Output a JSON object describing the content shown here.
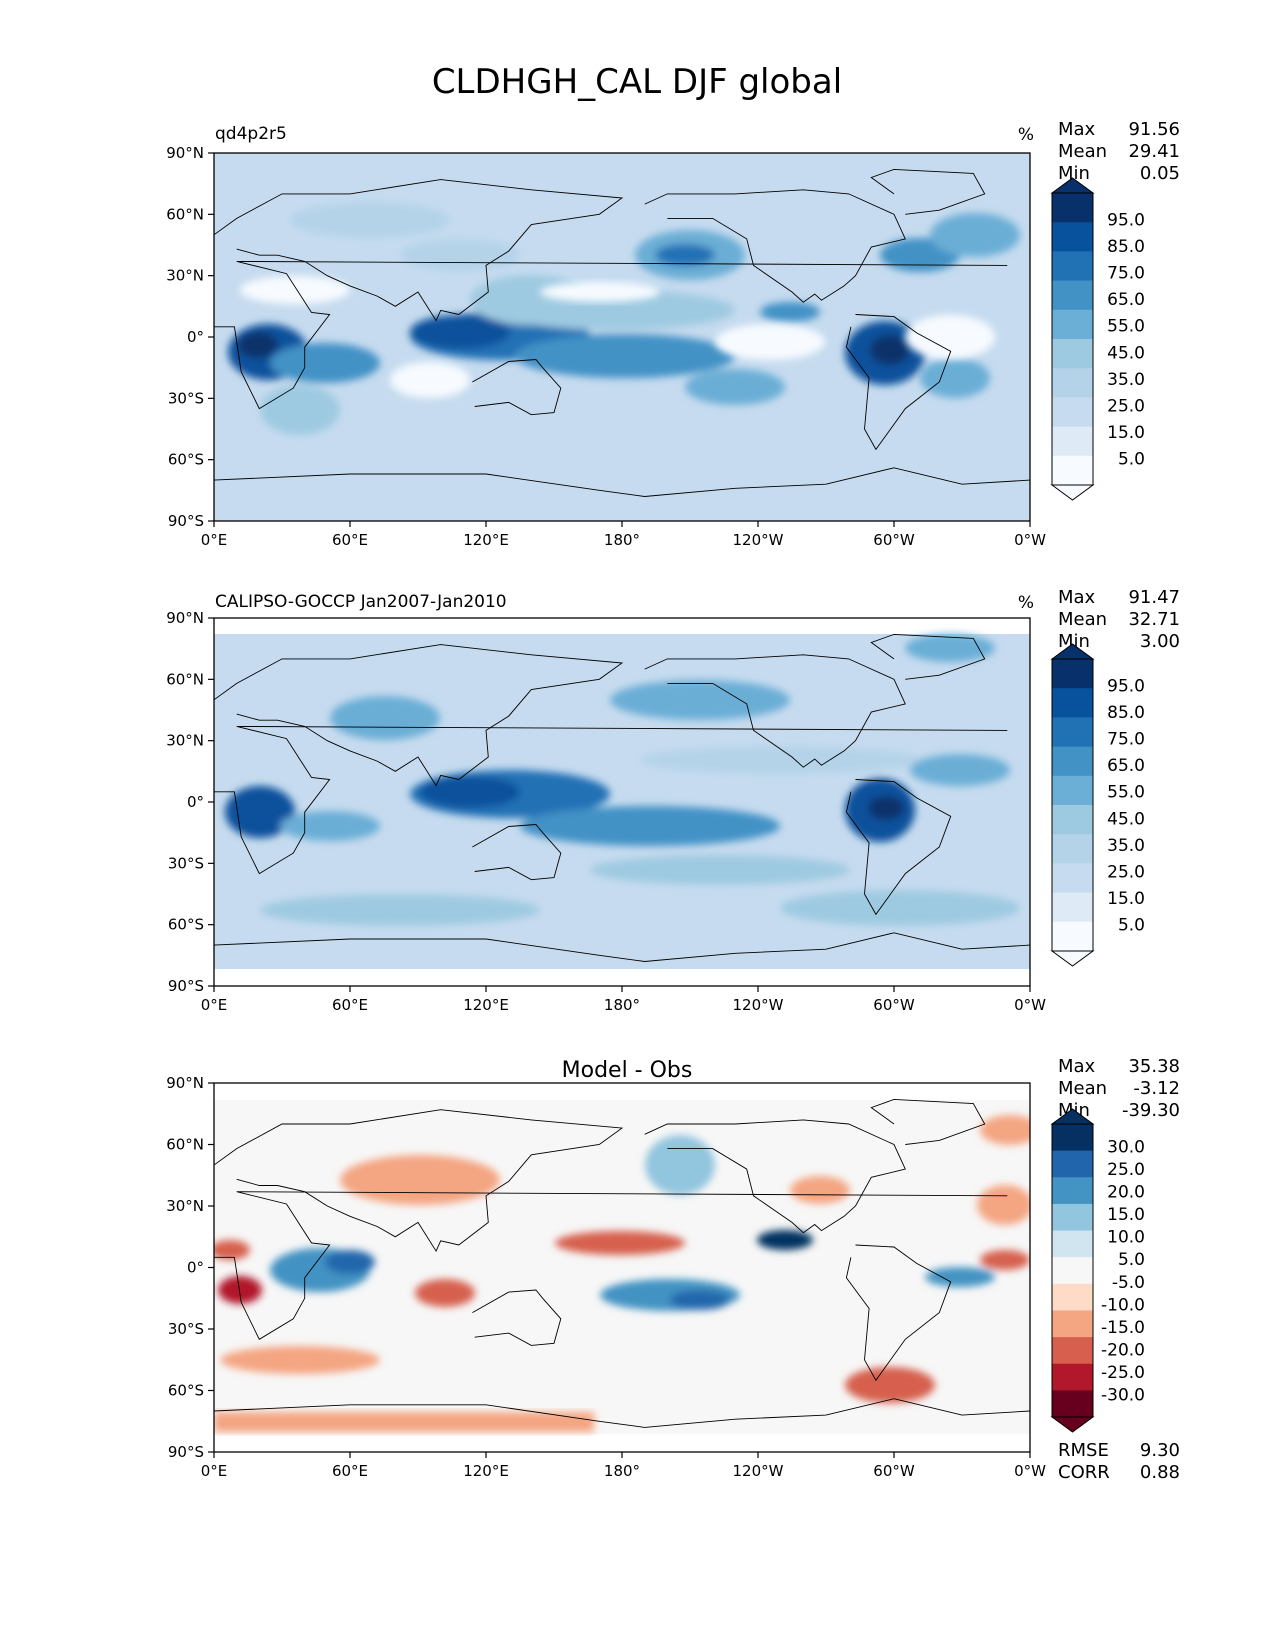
{
  "figure": {
    "title": "CLDHGH_CAL DJF global"
  },
  "colors": {
    "blues": [
      "#f7fbff",
      "#deebf7",
      "#c6dbef",
      "#b4d3e9",
      "#9ecae1",
      "#6baed6",
      "#4292c6",
      "#2171b5",
      "#08519c",
      "#08306b"
    ],
    "diverging": [
      "#67001f",
      "#b2182b",
      "#d6604d",
      "#f4a582",
      "#fddbc7",
      "#f7f7f7",
      "#d1e5f0",
      "#92c5de",
      "#4393c3",
      "#2166ac",
      "#053061"
    ],
    "land": "#000000",
    "frame": "#000000"
  },
  "chart_data": [
    {
      "type": "heatmap",
      "panel": "test",
      "title": "",
      "left_title": "qd4p2r5",
      "units": "%",
      "stats": [
        {
          "label": "Max",
          "value": "91.56"
        },
        {
          "label": "Mean",
          "value": "29.41"
        },
        {
          "label": "Min",
          "value": "0.05"
        }
      ],
      "colorbar_ticks": [
        "95.0",
        "85.0",
        "75.0",
        "65.0",
        "55.0",
        "45.0",
        "35.0",
        "25.0",
        "15.0",
        "5.0"
      ],
      "x_ticks": [
        "0°E",
        "60°E",
        "120°E",
        "180°",
        "120°W",
        "60°W",
        "0°W"
      ],
      "y_ticks": [
        "90°N",
        "60°N",
        "30°N",
        "0°",
        "30°S",
        "60°S",
        "90°S"
      ],
      "xlim": [
        0,
        360
      ],
      "ylim": [
        -90,
        90
      ],
      "field_range": [
        0,
        100
      ]
    },
    {
      "type": "heatmap",
      "panel": "reference",
      "title": "",
      "left_title": "CALIPSO-GOCCP Jan2007-Jan2010",
      "units": "%",
      "stats": [
        {
          "label": "Max",
          "value": "91.47"
        },
        {
          "label": "Mean",
          "value": "32.71"
        },
        {
          "label": "Min",
          "value": "3.00"
        }
      ],
      "colorbar_ticks": [
        "95.0",
        "85.0",
        "75.0",
        "65.0",
        "55.0",
        "45.0",
        "35.0",
        "25.0",
        "15.0",
        "5.0"
      ],
      "x_ticks": [
        "0°E",
        "60°E",
        "120°E",
        "180°",
        "120°W",
        "60°W",
        "0°W"
      ],
      "y_ticks": [
        "90°N",
        "60°N",
        "30°N",
        "0°",
        "30°S",
        "60°S",
        "90°S"
      ],
      "xlim": [
        0,
        360
      ],
      "ylim": [
        -90,
        90
      ],
      "field_range": [
        0,
        100
      ]
    },
    {
      "type": "heatmap",
      "panel": "difference",
      "title": "Model - Obs",
      "left_title": "",
      "units": "",
      "stats": [
        {
          "label": "Max",
          "value": "35.38"
        },
        {
          "label": "Mean",
          "value": "-3.12"
        },
        {
          "label": "Min",
          "value": "-39.30"
        }
      ],
      "colorbar_ticks": [
        "30.0",
        "25.0",
        "20.0",
        "15.0",
        "10.0",
        "5.0",
        "-5.0",
        "-10.0",
        "-15.0",
        "-20.0",
        "-25.0",
        "-30.0"
      ],
      "bottom_stats": [
        {
          "label": "RMSE",
          "value": "9.30"
        },
        {
          "label": "CORR",
          "value": "0.88"
        }
      ],
      "x_ticks": [
        "0°E",
        "60°E",
        "120°E",
        "180°",
        "120°W",
        "60°W",
        "0°W"
      ],
      "y_ticks": [
        "90°N",
        "60°N",
        "30°N",
        "0°",
        "30°S",
        "60°S",
        "90°S"
      ],
      "xlim": [
        0,
        360
      ],
      "ylim": [
        -90,
        90
      ],
      "field_range": [
        -40,
        40
      ]
    }
  ]
}
